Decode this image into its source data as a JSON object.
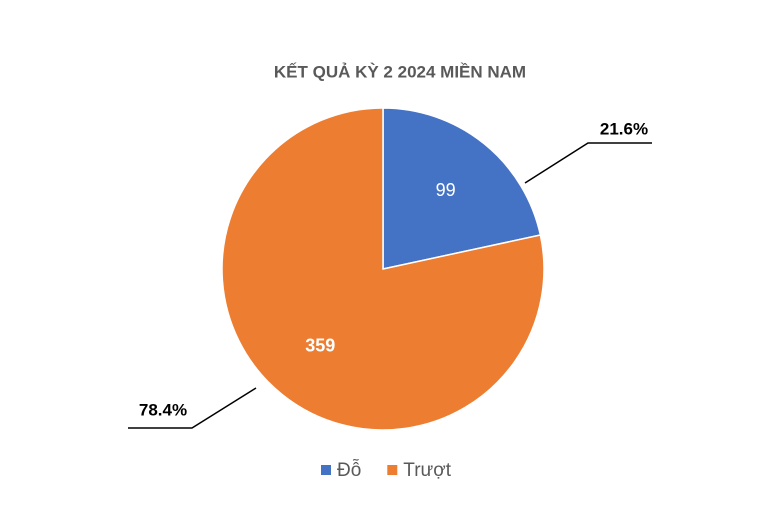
{
  "chart_data": {
    "type": "pie",
    "title": "KẾT QUẢ KỲ 2 2024 MIỀN NAM",
    "categories": [
      "Đỗ",
      "Trượt"
    ],
    "values": [
      99,
      359
    ],
    "colors": [
      "#4472c4",
      "#ed7d31"
    ],
    "percents": [
      21.6,
      78.4
    ],
    "percent_labels": [
      "21.6%",
      "78.4%"
    ],
    "legend": "bottom"
  }
}
